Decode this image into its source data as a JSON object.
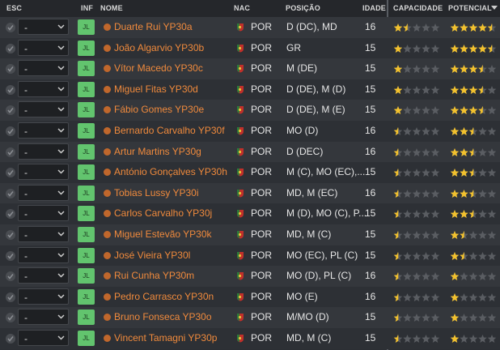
{
  "table": {
    "columns": [
      "ESC",
      "INF",
      "NOME",
      "NAC",
      "POSIÇÃO",
      "IDADE",
      "CAPACIDADE",
      "POTENCIAL"
    ],
    "rows": [
      {
        "select": "-",
        "button": "JL",
        "name": "Duarte Rui YP30a",
        "nationality": "POR",
        "position": "D (DC), MD",
        "age": 16,
        "ability": 1.5,
        "potential": 4.5
      },
      {
        "select": "-",
        "button": "JL",
        "name": "João Algarvio YP30b",
        "nationality": "POR",
        "position": "GR",
        "age": 15,
        "ability": 1,
        "potential": 4.5
      },
      {
        "select": "-",
        "button": "JL",
        "name": "Vítor Macedo YP30c",
        "nationality": "POR",
        "position": "M (DE)",
        "age": 15,
        "ability": 1,
        "potential": 3.5
      },
      {
        "select": "-",
        "button": "JL",
        "name": "Miguel Fitas YP30d",
        "nationality": "POR",
        "position": "D (DE), M (D)",
        "age": 15,
        "ability": 1,
        "potential": 3.5
      },
      {
        "select": "-",
        "button": "JL",
        "name": "Fábio Gomes YP30e",
        "nationality": "POR",
        "position": "D (DE), M (E)",
        "age": 15,
        "ability": 1,
        "potential": 3.5
      },
      {
        "select": "-",
        "button": "JL",
        "name": "Bernardo Carvalho YP30f",
        "nationality": "POR",
        "position": "MO (D)",
        "age": 16,
        "ability": 0.5,
        "potential": 2.5
      },
      {
        "select": "-",
        "button": "JL",
        "name": "Artur Martins YP30g",
        "nationality": "POR",
        "position": "D (DEC)",
        "age": 16,
        "ability": 0.5,
        "potential": 2.5
      },
      {
        "select": "-",
        "button": "JL",
        "name": "António Gonçalves YP30h",
        "nationality": "POR",
        "position": "M (C), MO (EC),...",
        "age": 15,
        "ability": 0.5,
        "potential": 2.5
      },
      {
        "select": "-",
        "button": "JL",
        "name": "Tobias Lussy YP30i",
        "nationality": "POR",
        "position": "MD, M (EC)",
        "age": 16,
        "ability": 0.5,
        "potential": 2.5
      },
      {
        "select": "-",
        "button": "JL",
        "name": "Carlos Carvalho YP30j",
        "nationality": "POR",
        "position": "M (D), MO (C), P...",
        "age": 15,
        "ability": 0.5,
        "potential": 2.5
      },
      {
        "select": "-",
        "button": "JL",
        "name": "Miguel Estevão YP30k",
        "nationality": "POR",
        "position": "MD, M (C)",
        "age": 15,
        "ability": 0.5,
        "potential": 1.5
      },
      {
        "select": "-",
        "button": "JL",
        "name": "José Vieira YP30l",
        "nationality": "POR",
        "position": "MO (EC), PL (C)",
        "age": 15,
        "ability": 0.5,
        "potential": 1.5
      },
      {
        "select": "-",
        "button": "JL",
        "name": "Rui Cunha YP30m",
        "nationality": "POR",
        "position": "MO (D), PL (C)",
        "age": 16,
        "ability": 0.5,
        "potential": 1
      },
      {
        "select": "-",
        "button": "JL",
        "name": "Pedro Carrasco YP30n",
        "nationality": "POR",
        "position": "MO (E)",
        "age": 16,
        "ability": 0.5,
        "potential": 1
      },
      {
        "select": "-",
        "button": "JL",
        "name": "Bruno Fonseca YP30o",
        "nationality": "POR",
        "position": "M/MO (D)",
        "age": 15,
        "ability": 0.5,
        "potential": 1
      },
      {
        "select": "-",
        "button": "JL",
        "name": "Vincent Tamagni YP30p",
        "nationality": "POR",
        "position": "MD, M (C)",
        "age": 15,
        "ability": 0.5,
        "potential": 1
      }
    ]
  }
}
